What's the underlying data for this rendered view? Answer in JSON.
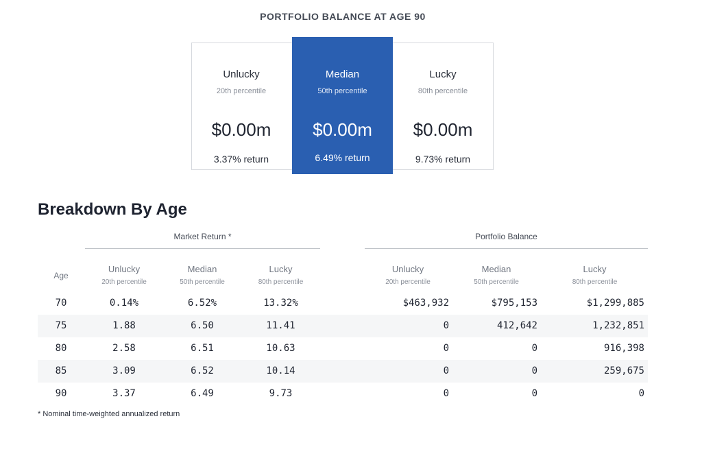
{
  "summary": {
    "title": "PORTFOLIO BALANCE AT AGE 90",
    "cards": [
      {
        "name": "Unlucky",
        "percentile": "20th percentile",
        "amount": "$0.00m",
        "return": "3.37% return"
      },
      {
        "name": "Median",
        "percentile": "50th percentile",
        "amount": "$0.00m",
        "return": "6.49% return"
      },
      {
        "name": "Lucky",
        "percentile": "80th percentile",
        "amount": "$0.00m",
        "return": "9.73% return"
      }
    ],
    "highlight_color": "#2a5fb1"
  },
  "breakdown": {
    "title": "Breakdown By Age",
    "group_market": "Market Return *",
    "group_balance": "Portfolio Balance",
    "age_header": "Age",
    "columns": [
      {
        "label": "Unlucky",
        "sub": "20th percentile"
      },
      {
        "label": "Median",
        "sub": "50th percentile"
      },
      {
        "label": "Lucky",
        "sub": "80th percentile"
      },
      {
        "label": "Unlucky",
        "sub": "20th percentile"
      },
      {
        "label": "Median",
        "sub": "50th percentile"
      },
      {
        "label": "Lucky",
        "sub": "80th percentile"
      }
    ],
    "rows": [
      {
        "age": "70",
        "m_unlucky": "0.14%",
        "m_median": "6.52%",
        "m_lucky": "13.32%",
        "b_unlucky": "$463,932",
        "b_median": "$795,153",
        "b_lucky": "$1,299,885"
      },
      {
        "age": "75",
        "m_unlucky": "1.88",
        "m_median": "6.50",
        "m_lucky": "11.41",
        "b_unlucky": "0",
        "b_median": "412,642",
        "b_lucky": "1,232,851"
      },
      {
        "age": "80",
        "m_unlucky": "2.58",
        "m_median": "6.51",
        "m_lucky": "10.63",
        "b_unlucky": "0",
        "b_median": "0",
        "b_lucky": "916,398"
      },
      {
        "age": "85",
        "m_unlucky": "3.09",
        "m_median": "6.52",
        "m_lucky": "10.14",
        "b_unlucky": "0",
        "b_median": "0",
        "b_lucky": "259,675"
      },
      {
        "age": "90",
        "m_unlucky": "3.37",
        "m_median": "6.49",
        "m_lucky": "9.73",
        "b_unlucky": "0",
        "b_median": "0",
        "b_lucky": "0"
      }
    ],
    "footnote": "* Nominal time-weighted annualized return"
  }
}
